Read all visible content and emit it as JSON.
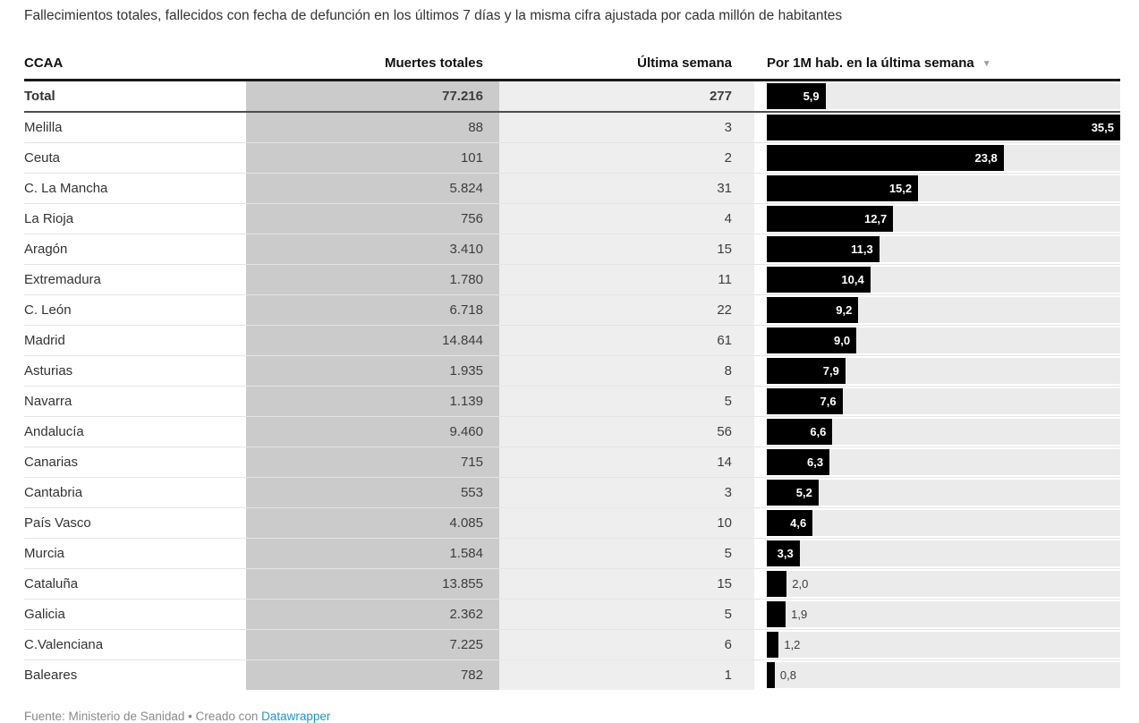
{
  "title": "Fallecimientos totales, fallecidos con fecha de defunción en los últimos 7 días y la misma cifra ajustada por cada millón de habitantes",
  "table": {
    "columns": [
      {
        "label": "CCAA"
      },
      {
        "label": "Muertes totales"
      },
      {
        "label": "Última semana"
      },
      {
        "label": "Por 1M hab. en la última semana"
      }
    ],
    "sort_icon": "▼",
    "sorted_by": "Por 1M hab. en la última semana",
    "sort_direction": "desc",
    "bar_max": 35.5,
    "total_row": {
      "name": "Total",
      "muertes": "77.216",
      "semana": "277",
      "per1m": 5.9,
      "per1m_label": "5,9",
      "label_position": "inside"
    },
    "rows": [
      {
        "name": "Melilla",
        "muertes": "88",
        "semana": "3",
        "per1m": 35.5,
        "per1m_label": "35,5",
        "label_position": "inside"
      },
      {
        "name": "Ceuta",
        "muertes": "101",
        "semana": "2",
        "per1m": 23.8,
        "per1m_label": "23,8",
        "label_position": "inside"
      },
      {
        "name": "C. La Mancha",
        "muertes": "5.824",
        "semana": "31",
        "per1m": 15.2,
        "per1m_label": "15,2",
        "label_position": "inside"
      },
      {
        "name": "La Rioja",
        "muertes": "756",
        "semana": "4",
        "per1m": 12.7,
        "per1m_label": "12,7",
        "label_position": "inside"
      },
      {
        "name": "Aragón",
        "muertes": "3.410",
        "semana": "15",
        "per1m": 11.3,
        "per1m_label": "11,3",
        "label_position": "inside"
      },
      {
        "name": "Extremadura",
        "muertes": "1.780",
        "semana": "11",
        "per1m": 10.4,
        "per1m_label": "10,4",
        "label_position": "inside"
      },
      {
        "name": "C. León",
        "muertes": "6.718",
        "semana": "22",
        "per1m": 9.2,
        "per1m_label": "9,2",
        "label_position": "inside"
      },
      {
        "name": "Madrid",
        "muertes": "14.844",
        "semana": "61",
        "per1m": 9.0,
        "per1m_label": "9,0",
        "label_position": "inside"
      },
      {
        "name": "Asturias",
        "muertes": "1.935",
        "semana": "8",
        "per1m": 7.9,
        "per1m_label": "7,9",
        "label_position": "inside"
      },
      {
        "name": "Navarra",
        "muertes": "1.139",
        "semana": "5",
        "per1m": 7.6,
        "per1m_label": "7,6",
        "label_position": "inside"
      },
      {
        "name": "Andalucía",
        "muertes": "9.460",
        "semana": "56",
        "per1m": 6.6,
        "per1m_label": "6,6",
        "label_position": "inside"
      },
      {
        "name": "Canarias",
        "muertes": "715",
        "semana": "14",
        "per1m": 6.3,
        "per1m_label": "6,3",
        "label_position": "inside"
      },
      {
        "name": "Cantabria",
        "muertes": "553",
        "semana": "3",
        "per1m": 5.2,
        "per1m_label": "5,2",
        "label_position": "inside"
      },
      {
        "name": "País Vasco",
        "muertes": "4.085",
        "semana": "10",
        "per1m": 4.6,
        "per1m_label": "4,6",
        "label_position": "inside"
      },
      {
        "name": "Murcia",
        "muertes": "1.584",
        "semana": "5",
        "per1m": 3.3,
        "per1m_label": "3,3",
        "label_position": "inside"
      },
      {
        "name": "Cataluña",
        "muertes": "13.855",
        "semana": "15",
        "per1m": 2.0,
        "per1m_label": "2,0",
        "label_position": "outside"
      },
      {
        "name": "Galicia",
        "muertes": "2.362",
        "semana": "5",
        "per1m": 1.9,
        "per1m_label": "1,9",
        "label_position": "outside"
      },
      {
        "name": "C.Valenciana",
        "muertes": "7.225",
        "semana": "6",
        "per1m": 1.2,
        "per1m_label": "1,2",
        "label_position": "outside"
      },
      {
        "name": "Baleares",
        "muertes": "782",
        "semana": "1",
        "per1m": 0.8,
        "per1m_label": "0,8",
        "label_position": "outside"
      }
    ]
  },
  "footer": {
    "text": "Fuente: Ministerio de Sanidad • Creado con ",
    "link_label": "Datawrapper"
  },
  "colors": {
    "bar": "#000000",
    "bar_track": "#ebebeb",
    "muertes_column_bg": "#cbcbcb",
    "semana_column_bg": "#eeeeee",
    "link": "#1e96c8",
    "text": "#333333"
  },
  "chart_data": {
    "type": "table",
    "title": "Fallecimientos totales, fallecidos con fecha de defunción en los últimos 7 días y la misma cifra ajustada por cada millón de habitantes",
    "columns": [
      "CCAA",
      "Muertes totales",
      "Última semana",
      "Por 1M hab. en la última semana"
    ],
    "bar_column": "Por 1M hab. en la última semana",
    "bar_type": "bar",
    "bar_axis_max": 35.5,
    "sorted_by": "Por 1M hab. en la última semana",
    "sort_direction": "desc",
    "total": {
      "ccaa": "Total",
      "muertes_totales": 77216,
      "ultima_semana": 277,
      "por_1m": 5.9
    },
    "rows": [
      {
        "ccaa": "Melilla",
        "muertes_totales": 88,
        "ultima_semana": 3,
        "por_1m": 35.5
      },
      {
        "ccaa": "Ceuta",
        "muertes_totales": 101,
        "ultima_semana": 2,
        "por_1m": 23.8
      },
      {
        "ccaa": "C. La Mancha",
        "muertes_totales": 5824,
        "ultima_semana": 31,
        "por_1m": 15.2
      },
      {
        "ccaa": "La Rioja",
        "muertes_totales": 756,
        "ultima_semana": 4,
        "por_1m": 12.7
      },
      {
        "ccaa": "Aragón",
        "muertes_totales": 3410,
        "ultima_semana": 15,
        "por_1m": 11.3
      },
      {
        "ccaa": "Extremadura",
        "muertes_totales": 1780,
        "ultima_semana": 11,
        "por_1m": 10.4
      },
      {
        "ccaa": "C. León",
        "muertes_totales": 6718,
        "ultima_semana": 22,
        "por_1m": 9.2
      },
      {
        "ccaa": "Madrid",
        "muertes_totales": 14844,
        "ultima_semana": 61,
        "por_1m": 9.0
      },
      {
        "ccaa": "Asturias",
        "muertes_totales": 1935,
        "ultima_semana": 8,
        "por_1m": 7.9
      },
      {
        "ccaa": "Navarra",
        "muertes_totales": 1139,
        "ultima_semana": 5,
        "por_1m": 7.6
      },
      {
        "ccaa": "Andalucía",
        "muertes_totales": 9460,
        "ultima_semana": 56,
        "por_1m": 6.6
      },
      {
        "ccaa": "Canarias",
        "muertes_totales": 715,
        "ultima_semana": 14,
        "por_1m": 6.3
      },
      {
        "ccaa": "Cantabria",
        "muertes_totales": 553,
        "ultima_semana": 3,
        "por_1m": 5.2
      },
      {
        "ccaa": "País Vasco",
        "muertes_totales": 4085,
        "ultima_semana": 10,
        "por_1m": 4.6
      },
      {
        "ccaa": "Murcia",
        "muertes_totales": 1584,
        "ultima_semana": 5,
        "por_1m": 3.3
      },
      {
        "ccaa": "Cataluña",
        "muertes_totales": 13855,
        "ultima_semana": 15,
        "por_1m": 2.0
      },
      {
        "ccaa": "Galicia",
        "muertes_totales": 2362,
        "ultima_semana": 5,
        "por_1m": 1.9
      },
      {
        "ccaa": "C.Valenciana",
        "muertes_totales": 7225,
        "ultima_semana": 6,
        "por_1m": 1.2
      },
      {
        "ccaa": "Baleares",
        "muertes_totales": 782,
        "ultima_semana": 1,
        "por_1m": 0.8
      }
    ],
    "source": "Fuente: Ministerio de Sanidad",
    "created_with": "Datawrapper"
  }
}
